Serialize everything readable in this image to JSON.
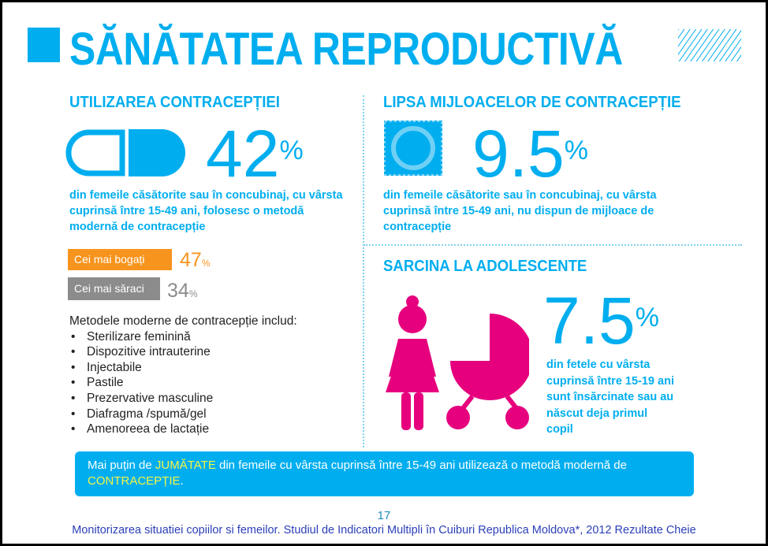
{
  "title": "SĂNĂTATEA REPRODUCTIVĂ",
  "left": {
    "heading": "UTILIZAREA CONTRACEPȚIEI",
    "value": "42",
    "unit": "%",
    "description": "din femeile căsătorite sau în concubinaj, cu vârsta cuprinsă între 15-49 ani, folosesc o metodă modernă de contracepție",
    "richest": {
      "label": "Cei mai bogați",
      "value": "47",
      "unit": "%",
      "color": "#f7941d"
    },
    "poorest": {
      "label": "Cei mai săraci",
      "value": "34",
      "unit": "%",
      "color": "#8c8c8c"
    },
    "methods_intro": "Metodele moderne de contracepție includ:",
    "methods": [
      "Sterilizare feminină",
      "Dispozitive intrauterine",
      "Injectabile",
      "Pastile",
      "Prezervative masculine",
      "Diafragma /spumă/gel",
      "Amenoreea de lactație"
    ]
  },
  "right_top": {
    "heading": "LIPSA MIJLOACELOR DE CONTRACEPȚIE",
    "value": "9.5",
    "unit": "%",
    "description": "din femeile căsătorite sau în concubinaj, cu vârsta cuprinsă între 15-49 ani, nu dispun de mijloace de contracepție"
  },
  "right_bottom": {
    "heading": "SARCINA LA ADOLESCENTE",
    "value": "7.5",
    "unit": "%",
    "description": "din fetele cu vârsta cuprinsă între 15-19 ani sunt însărcinate sau au născut deja primul copil",
    "color": "#e6007e"
  },
  "callout": {
    "part1": "Mai puțin de ",
    "hl1": "JUMĂTATE",
    "part2": " din femeile cu vârsta cuprinsă între 15-49 ani utilizează o metodă modernă de ",
    "hl2": "CONTRACEPȚIE",
    "part3": "."
  },
  "page_number": "17",
  "footer": "Monitorizarea situatiei copiilor si femeilor. Studiul de Indicatori Multipli în Cuiburi Republica Moldova*, 2012 Rezultate Cheie"
}
